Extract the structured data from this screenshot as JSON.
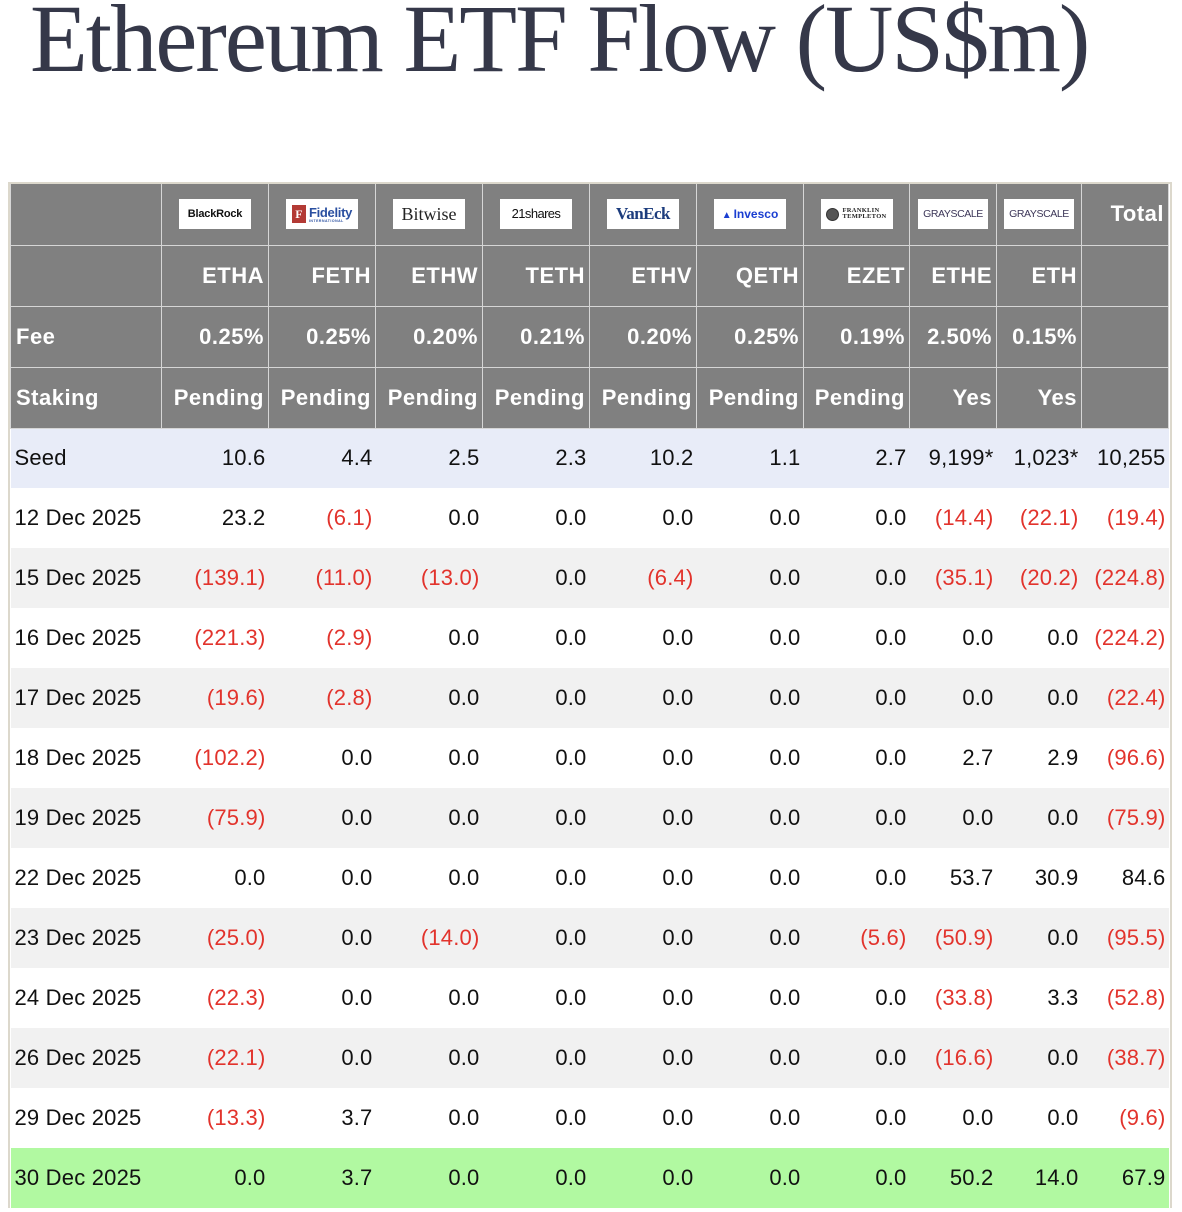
{
  "title": "Ethereum ETF Flow (US$m)",
  "colors": {
    "header_bg": "#808080",
    "header_text": "#ffffff",
    "title": "#353849",
    "negative": "#e2332c",
    "seed_row_bg": "#e8ecf8",
    "alt_row_bg": "#f1f1f1",
    "latest_row_bg": "#b1f9a1"
  },
  "issuers": [
    {
      "name": "BlackRock",
      "ticker": "ETHA",
      "fee": "0.25%",
      "staking": "Pending"
    },
    {
      "name": "Fidelity",
      "sub": "INTERNATIONAL",
      "ticker": "FETH",
      "fee": "0.25%",
      "staking": "Pending"
    },
    {
      "name": "Bitwise",
      "ticker": "ETHW",
      "fee": "0.20%",
      "staking": "Pending"
    },
    {
      "name": "21shares",
      "ticker": "TETH",
      "fee": "0.21%",
      "staking": "Pending"
    },
    {
      "name": "VanEck",
      "ticker": "ETHV",
      "fee": "0.20%",
      "staking": "Pending"
    },
    {
      "name": "Invesco",
      "ticker": "QETH",
      "fee": "0.25%",
      "staking": "Pending"
    },
    {
      "name": "FRANKLIN",
      "sub": "TEMPLETON",
      "ticker": "EZET",
      "fee": "0.19%",
      "staking": "Pending"
    },
    {
      "name": "GRAYSCALE",
      "ticker": "ETHE",
      "fee": "2.50%",
      "staking": "Yes"
    },
    {
      "name": "GRAYSCALE",
      "ticker": "ETH",
      "fee": "0.15%",
      "staking": "Yes"
    }
  ],
  "header": {
    "total_label": "Total",
    "fee_label": "Fee",
    "staking_label": "Staking"
  },
  "rows": [
    {
      "date": "Seed",
      "values": [
        "10.6",
        "4.4",
        "2.5",
        "2.3",
        "10.2",
        "1.1",
        "2.7",
        "9,199*",
        "1,023*"
      ],
      "total": "10,255"
    },
    {
      "date": "12 Dec 2025",
      "values": [
        "23.2",
        "(6.1)",
        "0.0",
        "0.0",
        "0.0",
        "0.0",
        "0.0",
        "(14.4)",
        "(22.1)"
      ],
      "total": "(19.4)"
    },
    {
      "date": "15 Dec 2025",
      "values": [
        "(139.1)",
        "(11.0)",
        "(13.0)",
        "0.0",
        "(6.4)",
        "0.0",
        "0.0",
        "(35.1)",
        "(20.2)"
      ],
      "total": "(224.8)"
    },
    {
      "date": "16 Dec 2025",
      "values": [
        "(221.3)",
        "(2.9)",
        "0.0",
        "0.0",
        "0.0",
        "0.0",
        "0.0",
        "0.0",
        "0.0"
      ],
      "total": "(224.2)"
    },
    {
      "date": "17 Dec 2025",
      "values": [
        "(19.6)",
        "(2.8)",
        "0.0",
        "0.0",
        "0.0",
        "0.0",
        "0.0",
        "0.0",
        "0.0"
      ],
      "total": "(22.4)"
    },
    {
      "date": "18 Dec 2025",
      "values": [
        "(102.2)",
        "0.0",
        "0.0",
        "0.0",
        "0.0",
        "0.0",
        "0.0",
        "2.7",
        "2.9"
      ],
      "total": "(96.6)"
    },
    {
      "date": "19 Dec 2025",
      "values": [
        "(75.9)",
        "0.0",
        "0.0",
        "0.0",
        "0.0",
        "0.0",
        "0.0",
        "0.0",
        "0.0"
      ],
      "total": "(75.9)"
    },
    {
      "date": "22 Dec 2025",
      "values": [
        "0.0",
        "0.0",
        "0.0",
        "0.0",
        "0.0",
        "0.0",
        "0.0",
        "53.7",
        "30.9"
      ],
      "total": "84.6"
    },
    {
      "date": "23 Dec 2025",
      "values": [
        "(25.0)",
        "0.0",
        "(14.0)",
        "0.0",
        "0.0",
        "0.0",
        "(5.6)",
        "(50.9)",
        "0.0"
      ],
      "total": "(95.5)"
    },
    {
      "date": "24 Dec 2025",
      "values": [
        "(22.3)",
        "0.0",
        "0.0",
        "0.0",
        "0.0",
        "0.0",
        "0.0",
        "(33.8)",
        "3.3"
      ],
      "total": "(52.8)"
    },
    {
      "date": "26 Dec 2025",
      "values": [
        "(22.1)",
        "0.0",
        "0.0",
        "0.0",
        "0.0",
        "0.0",
        "0.0",
        "(16.6)",
        "0.0"
      ],
      "total": "(38.7)"
    },
    {
      "date": "29 Dec 2025",
      "values": [
        "(13.3)",
        "3.7",
        "0.0",
        "0.0",
        "0.0",
        "0.0",
        "0.0",
        "0.0",
        "0.0"
      ],
      "total": "(9.6)"
    },
    {
      "date": "30 Dec 2025",
      "values": [
        "0.0",
        "3.7",
        "0.0",
        "0.0",
        "0.0",
        "0.0",
        "0.0",
        "50.2",
        "14.0"
      ],
      "total": "67.9"
    }
  ]
}
